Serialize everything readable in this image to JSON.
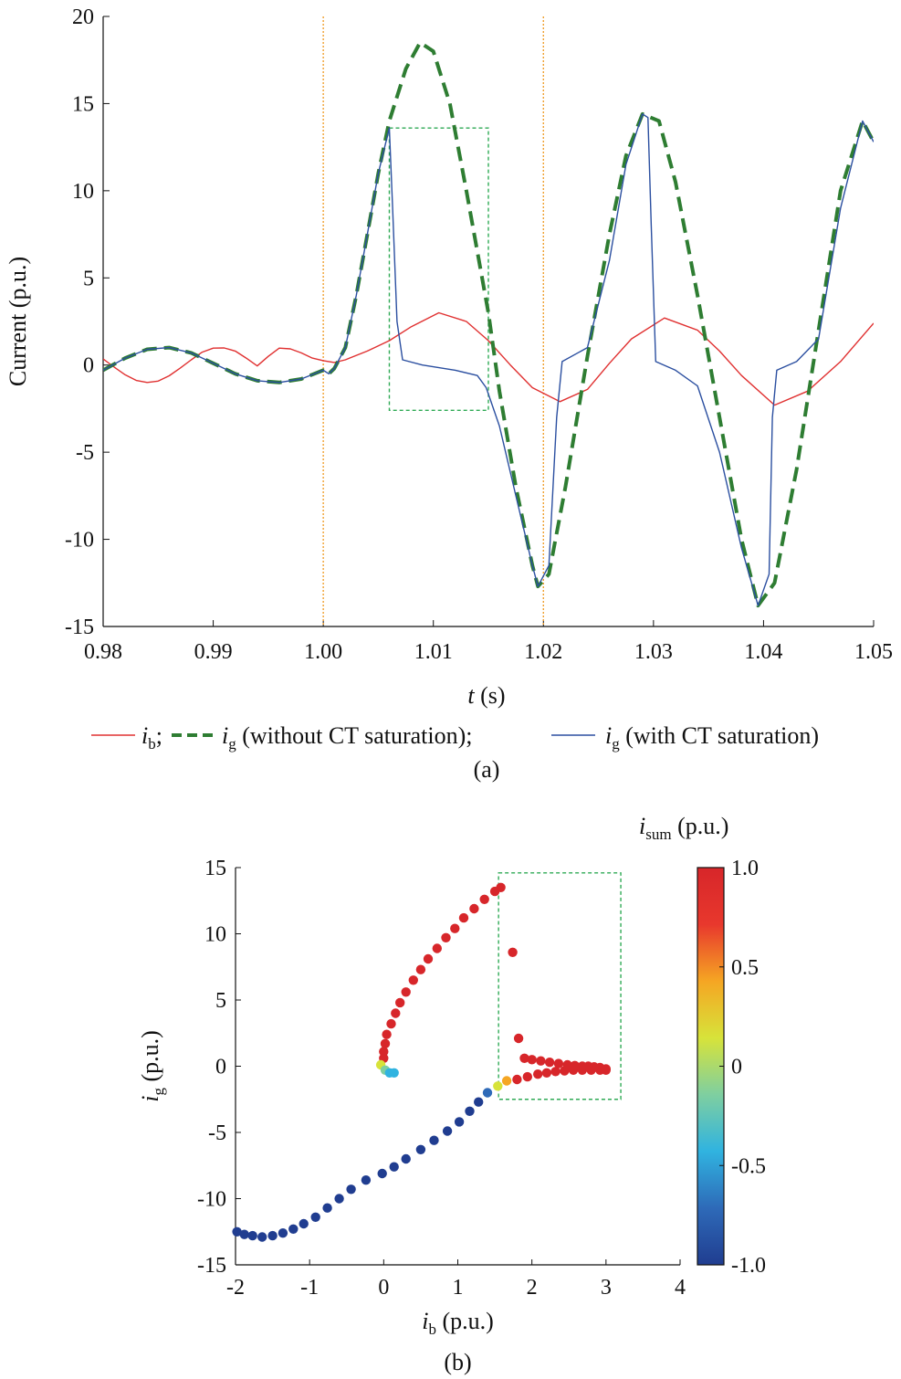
{
  "chart_data": [
    {
      "panel_label": "(a)",
      "type": "line",
      "ylabel": "Current (p.u.)",
      "xlabel": {
        "var": "t",
        "unit": " (s)"
      },
      "xlim": [
        0.98,
        1.05
      ],
      "ylim": [
        -15,
        20
      ],
      "xticks": [
        "0.98",
        "0.99",
        "1.00",
        "1.01",
        "1.02",
        "1.03",
        "1.04",
        "1.05"
      ],
      "yticks": [
        "20",
        "15",
        "10",
        "5",
        "0",
        "-5",
        "-10",
        "-15"
      ],
      "ytick_values": [
        20,
        15,
        10,
        5,
        0,
        -5,
        -10,
        -15
      ],
      "xtick_values": [
        0.98,
        0.99,
        1.0,
        1.01,
        1.02,
        1.03,
        1.04,
        1.05
      ],
      "grid": false,
      "vlines": [
        1.0,
        1.02
      ],
      "highlight_box": {
        "x": [
          1.006,
          1.015
        ],
        "y": [
          -2.6,
          13.6
        ]
      },
      "legend": {
        "placement": "bottom",
        "items": [
          {
            "sym": "i",
            "sub": "b",
            "tail": ";",
            "color": "#e03030",
            "style": "solid"
          },
          {
            "sym": "i",
            "sub": "g",
            "tail": " (without CT saturation);",
            "color": "#2e7d32",
            "style": "dashed"
          },
          {
            "sym": "i",
            "sub": "g",
            "tail": " (with CT saturation)",
            "color": "#2b4fa0",
            "style": "solid"
          }
        ]
      },
      "series": [
        {
          "name_sym": "i_b",
          "color": "#e03030",
          "points": [
            [
              0.98,
              0.35
            ],
            [
              0.981,
              -0.12
            ],
            [
              0.982,
              -0.56
            ],
            [
              0.983,
              -0.88
            ],
            [
              0.984,
              -1.0
            ],
            [
              0.985,
              -0.92
            ],
            [
              0.986,
              -0.62
            ],
            [
              0.987,
              -0.18
            ],
            [
              0.988,
              0.3
            ],
            [
              0.989,
              0.74
            ],
            [
              0.99,
              0.97
            ],
            [
              0.991,
              0.98
            ],
            [
              0.992,
              0.8
            ],
            [
              0.993,
              0.4
            ],
            [
              0.994,
              -0.05
            ],
            [
              0.995,
              0.5
            ],
            [
              0.996,
              0.97
            ],
            [
              0.997,
              0.93
            ],
            [
              0.998,
              0.7
            ],
            [
              0.999,
              0.4
            ],
            [
              1.0,
              0.25
            ],
            [
              1.001,
              0.15
            ],
            [
              1.002,
              0.3
            ],
            [
              1.004,
              0.8
            ],
            [
              1.006,
              1.4
            ],
            [
              1.008,
              2.2
            ],
            [
              1.0105,
              3.0
            ],
            [
              1.013,
              2.5
            ],
            [
              1.015,
              1.4
            ],
            [
              1.017,
              0.0
            ],
            [
              1.019,
              -1.3
            ],
            [
              1.0215,
              -2.1
            ],
            [
              1.024,
              -1.4
            ],
            [
              1.026,
              0.1
            ],
            [
              1.028,
              1.5
            ],
            [
              1.031,
              2.7
            ],
            [
              1.034,
              2.0
            ],
            [
              1.036,
              0.8
            ],
            [
              1.038,
              -0.6
            ],
            [
              1.041,
              -2.3
            ],
            [
              1.044,
              -1.5
            ],
            [
              1.047,
              0.2
            ],
            [
              1.05,
              2.4
            ]
          ]
        },
        {
          "name_sym": "i_g without CT saturation",
          "color": "#2e7d32",
          "dashed": true,
          "points": [
            [
              0.98,
              -0.3
            ],
            [
              0.982,
              0.4
            ],
            [
              0.984,
              0.9
            ],
            [
              0.986,
              1.0
            ],
            [
              0.988,
              0.7
            ],
            [
              0.99,
              0.1
            ],
            [
              0.992,
              -0.5
            ],
            [
              0.994,
              -0.9
            ],
            [
              0.996,
              -1.0
            ],
            [
              0.998,
              -0.8
            ],
            [
              1.0,
              -0.3
            ],
            [
              1.0005,
              -0.5
            ],
            [
              1.001,
              -0.2
            ],
            [
              1.002,
              1.0
            ],
            [
              1.003,
              4.0
            ],
            [
              1.004,
              7.5
            ],
            [
              1.005,
              11.0
            ],
            [
              1.006,
              14.0
            ],
            [
              1.0075,
              17.0
            ],
            [
              1.0088,
              18.5
            ],
            [
              1.01,
              18.0
            ],
            [
              1.0115,
              15.0
            ],
            [
              1.013,
              10.0
            ],
            [
              1.015,
              3.0
            ],
            [
              1.016,
              -1.5
            ],
            [
              1.0175,
              -7.0
            ],
            [
              1.019,
              -11.5
            ],
            [
              1.0195,
              -12.7
            ],
            [
              1.0205,
              -12.0
            ],
            [
              1.022,
              -7.0
            ],
            [
              1.024,
              0.5
            ],
            [
              1.026,
              7.5
            ],
            [
              1.0275,
              12.0
            ],
            [
              1.029,
              14.4
            ],
            [
              1.0305,
              14.0
            ],
            [
              1.032,
              10.5
            ],
            [
              1.034,
              4.0
            ],
            [
              1.036,
              -3.0
            ],
            [
              1.038,
              -10.0
            ],
            [
              1.0395,
              -13.8
            ],
            [
              1.041,
              -12.5
            ],
            [
              1.043,
              -6.0
            ],
            [
              1.045,
              2.0
            ],
            [
              1.047,
              10.0
            ],
            [
              1.049,
              14.0
            ],
            [
              1.05,
              12.8
            ]
          ]
        },
        {
          "name_sym": "i_g with CT saturation",
          "color": "#2b4fa0",
          "points": [
            [
              0.98,
              -0.3
            ],
            [
              0.982,
              0.4
            ],
            [
              0.984,
              0.9
            ],
            [
              0.986,
              1.0
            ],
            [
              0.988,
              0.7
            ],
            [
              0.99,
              0.1
            ],
            [
              0.992,
              -0.5
            ],
            [
              0.994,
              -0.9
            ],
            [
              0.996,
              -1.0
            ],
            [
              0.998,
              -0.8
            ],
            [
              1.0,
              -0.3
            ],
            [
              1.0005,
              -0.5
            ],
            [
              1.001,
              -0.2
            ],
            [
              1.002,
              1.0
            ],
            [
              1.003,
              4.0
            ],
            [
              1.004,
              7.5
            ],
            [
              1.005,
              11.0
            ],
            [
              1.006,
              13.6
            ],
            [
              1.0063,
              9.0
            ],
            [
              1.0067,
              2.5
            ],
            [
              1.0072,
              0.3
            ],
            [
              1.009,
              0.0
            ],
            [
              1.012,
              -0.3
            ],
            [
              1.014,
              -0.6
            ],
            [
              1.0148,
              -1.3
            ],
            [
              1.016,
              -3.5
            ],
            [
              1.0175,
              -7.5
            ],
            [
              1.019,
              -11.5
            ],
            [
              1.0195,
              -12.7
            ],
            [
              1.0205,
              -11.5
            ],
            [
              1.0212,
              -3.0
            ],
            [
              1.0217,
              0.2
            ],
            [
              1.024,
              1.0
            ],
            [
              1.026,
              6.0
            ],
            [
              1.0275,
              11.5
            ],
            [
              1.029,
              14.4
            ],
            [
              1.0295,
              14.2
            ],
            [
              1.0298,
              8.0
            ],
            [
              1.0302,
              0.2
            ],
            [
              1.032,
              -0.3
            ],
            [
              1.034,
              -1.2
            ],
            [
              1.036,
              -5.0
            ],
            [
              1.038,
              -10.5
            ],
            [
              1.0395,
              -13.8
            ],
            [
              1.0405,
              -12.0
            ],
            [
              1.0408,
              -3.0
            ],
            [
              1.0412,
              -0.3
            ],
            [
              1.043,
              0.2
            ],
            [
              1.045,
              1.5
            ],
            [
              1.047,
              9.0
            ],
            [
              1.049,
              14.0
            ],
            [
              1.05,
              12.8
            ]
          ]
        }
      ]
    },
    {
      "panel_label": "(b)",
      "type": "scatter",
      "xlabel": {
        "sym": "i",
        "sub": "b",
        "unit": " (p.u.)"
      },
      "ylabel": {
        "sym": "i",
        "sub": "g",
        "unit": " (p.u.)"
      },
      "xlim": [
        -2,
        4
      ],
      "ylim": [
        -15,
        15
      ],
      "xticks": [
        "-2",
        "-1",
        "0",
        "1",
        "2",
        "3",
        "4"
      ],
      "xtick_values": [
        -2,
        -1,
        0,
        1,
        2,
        3,
        4
      ],
      "yticks": [
        "15",
        "10",
        "5",
        "0",
        "-5",
        "-10",
        "-15"
      ],
      "ytick_values": [
        15,
        10,
        5,
        0,
        -5,
        -10,
        -15
      ],
      "grid": false,
      "highlight_box": {
        "x": [
          1.55,
          3.2
        ],
        "y": [
          -2.5,
          14.6
        ]
      },
      "colorbar": {
        "title": {
          "sym": "i",
          "sub": "sum",
          "unit": " (p.u.)"
        },
        "ticks": [
          "1.0",
          "0.5",
          "0",
          "-0.5",
          "-1.0"
        ],
        "tick_values": [
          1.0,
          0.5,
          0,
          -0.5,
          -1.0
        ],
        "range": [
          -1.0,
          1.0
        ],
        "colormap": [
          "#203d90",
          "#2e6ab8",
          "#30b3e0",
          "#7fcfa0",
          "#d7e33a",
          "#f5a623",
          "#e8382d",
          "#d7262a"
        ]
      },
      "points": [
        {
          "x": -1.98,
          "y": -12.5,
          "c": -1
        },
        {
          "x": -1.88,
          "y": -12.7,
          "c": -1
        },
        {
          "x": -1.77,
          "y": -12.8,
          "c": -1
        },
        {
          "x": -1.64,
          "y": -12.9,
          "c": -1
        },
        {
          "x": -1.5,
          "y": -12.8,
          "c": -1
        },
        {
          "x": -1.36,
          "y": -12.6,
          "c": -1
        },
        {
          "x": -1.22,
          "y": -12.3,
          "c": -1
        },
        {
          "x": -1.08,
          "y": -11.9,
          "c": -1
        },
        {
          "x": -0.92,
          "y": -11.4,
          "c": -1
        },
        {
          "x": -0.76,
          "y": -10.7,
          "c": -1
        },
        {
          "x": -0.6,
          "y": -10.0,
          "c": -1
        },
        {
          "x": -0.44,
          "y": -9.3,
          "c": -1
        },
        {
          "x": -0.24,
          "y": -8.6,
          "c": -1
        },
        {
          "x": -0.02,
          "y": -8.1,
          "c": -1
        },
        {
          "x": 0.14,
          "y": -7.6,
          "c": -1
        },
        {
          "x": 0.3,
          "y": -7.0,
          "c": -1
        },
        {
          "x": 0.5,
          "y": -6.3,
          "c": -1
        },
        {
          "x": 0.68,
          "y": -5.6,
          "c": -1
        },
        {
          "x": 0.86,
          "y": -4.9,
          "c": -1
        },
        {
          "x": 1.02,
          "y": -4.2,
          "c": -1
        },
        {
          "x": 1.16,
          "y": -3.4,
          "c": -1
        },
        {
          "x": 1.28,
          "y": -2.7,
          "c": -1
        },
        {
          "x": 1.4,
          "y": -2.0,
          "c": -0.85
        },
        {
          "x": 1.54,
          "y": -1.5,
          "c": 0.1
        },
        {
          "x": 1.66,
          "y": -1.1,
          "c": 0.55
        },
        {
          "x": 1.8,
          "y": -1.0,
          "c": 1
        },
        {
          "x": 1.94,
          "y": -0.8,
          "c": 1
        },
        {
          "x": 2.08,
          "y": -0.6,
          "c": 1
        },
        {
          "x": 2.2,
          "y": -0.5,
          "c": 1
        },
        {
          "x": 2.32,
          "y": -0.4,
          "c": 1
        },
        {
          "x": 2.44,
          "y": -0.35,
          "c": 1
        },
        {
          "x": 2.56,
          "y": -0.3,
          "c": 1
        },
        {
          "x": 2.68,
          "y": -0.3,
          "c": 1
        },
        {
          "x": 2.8,
          "y": -0.3,
          "c": 1
        },
        {
          "x": 2.92,
          "y": -0.3,
          "c": 1
        },
        {
          "x": 3.0,
          "y": -0.3,
          "c": 1
        },
        {
          "x": 3.0,
          "y": -0.2,
          "c": 1
        },
        {
          "x": 2.92,
          "y": -0.1,
          "c": 1
        },
        {
          "x": 2.84,
          "y": -0.05,
          "c": 1
        },
        {
          "x": 2.76,
          "y": 0.0,
          "c": 1
        },
        {
          "x": 2.68,
          "y": 0.0,
          "c": 1
        },
        {
          "x": 2.58,
          "y": 0.05,
          "c": 1
        },
        {
          "x": 2.48,
          "y": 0.1,
          "c": 1
        },
        {
          "x": 2.36,
          "y": 0.2,
          "c": 1
        },
        {
          "x": 2.24,
          "y": 0.3,
          "c": 1
        },
        {
          "x": 2.12,
          "y": 0.4,
          "c": 1
        },
        {
          "x": 2.0,
          "y": 0.5,
          "c": 1
        },
        {
          "x": 1.9,
          "y": 0.6,
          "c": 1
        },
        {
          "x": 1.82,
          "y": 2.1,
          "c": 1
        },
        {
          "x": 1.74,
          "y": 8.6,
          "c": 1
        },
        {
          "x": 1.58,
          "y": 13.5,
          "c": 1
        },
        {
          "x": 1.5,
          "y": 13.2,
          "c": 1
        },
        {
          "x": 1.36,
          "y": 12.6,
          "c": 1
        },
        {
          "x": 1.22,
          "y": 11.9,
          "c": 1
        },
        {
          "x": 1.08,
          "y": 11.2,
          "c": 1
        },
        {
          "x": 0.96,
          "y": 10.4,
          "c": 1
        },
        {
          "x": 0.84,
          "y": 9.7,
          "c": 1
        },
        {
          "x": 0.72,
          "y": 8.9,
          "c": 1
        },
        {
          "x": 0.6,
          "y": 8.1,
          "c": 1
        },
        {
          "x": 0.5,
          "y": 7.3,
          "c": 1
        },
        {
          "x": 0.4,
          "y": 6.5,
          "c": 1
        },
        {
          "x": 0.3,
          "y": 5.6,
          "c": 1
        },
        {
          "x": 0.22,
          "y": 4.8,
          "c": 1
        },
        {
          "x": 0.16,
          "y": 4.0,
          "c": 1
        },
        {
          "x": 0.1,
          "y": 3.2,
          "c": 1
        },
        {
          "x": 0.04,
          "y": 2.4,
          "c": 1
        },
        {
          "x": 0.02,
          "y": 1.7,
          "c": 1
        },
        {
          "x": 0.0,
          "y": 1.1,
          "c": 1
        },
        {
          "x": 0.0,
          "y": 0.6,
          "c": 0.95
        },
        {
          "x": -0.04,
          "y": 0.1,
          "c": 0.25
        },
        {
          "x": 0.02,
          "y": -0.3,
          "c": -0.05
        },
        {
          "x": 0.08,
          "y": -0.5,
          "c": -0.45
        },
        {
          "x": 0.14,
          "y": -0.5,
          "c": -0.55
        }
      ]
    }
  ]
}
